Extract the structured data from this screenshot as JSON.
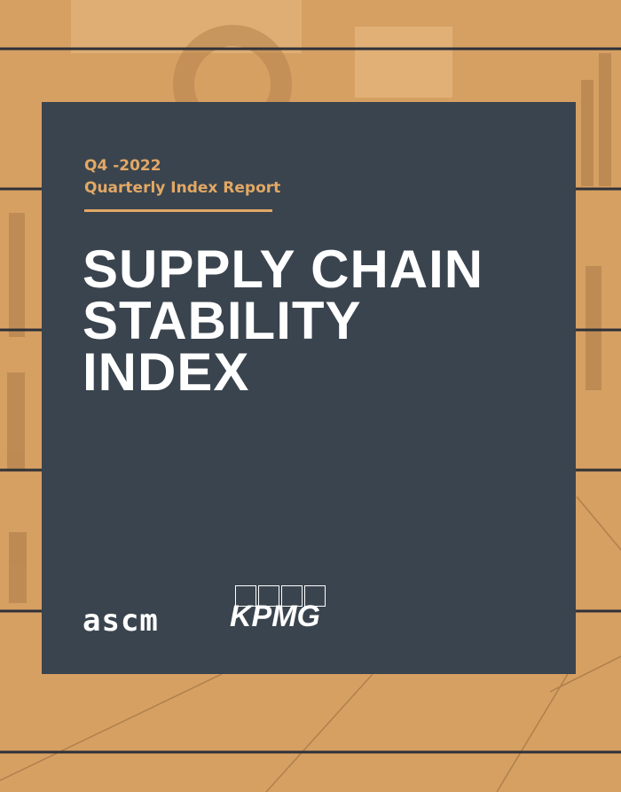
{
  "header": {
    "period": "Q4 -2022",
    "subtitle": "Quarterly Index Report"
  },
  "title_lines": [
    "SUPPLY CHAIN",
    "STABILITY",
    "INDEX"
  ],
  "logos": {
    "left": "ascm",
    "right": "KPMG"
  }
}
